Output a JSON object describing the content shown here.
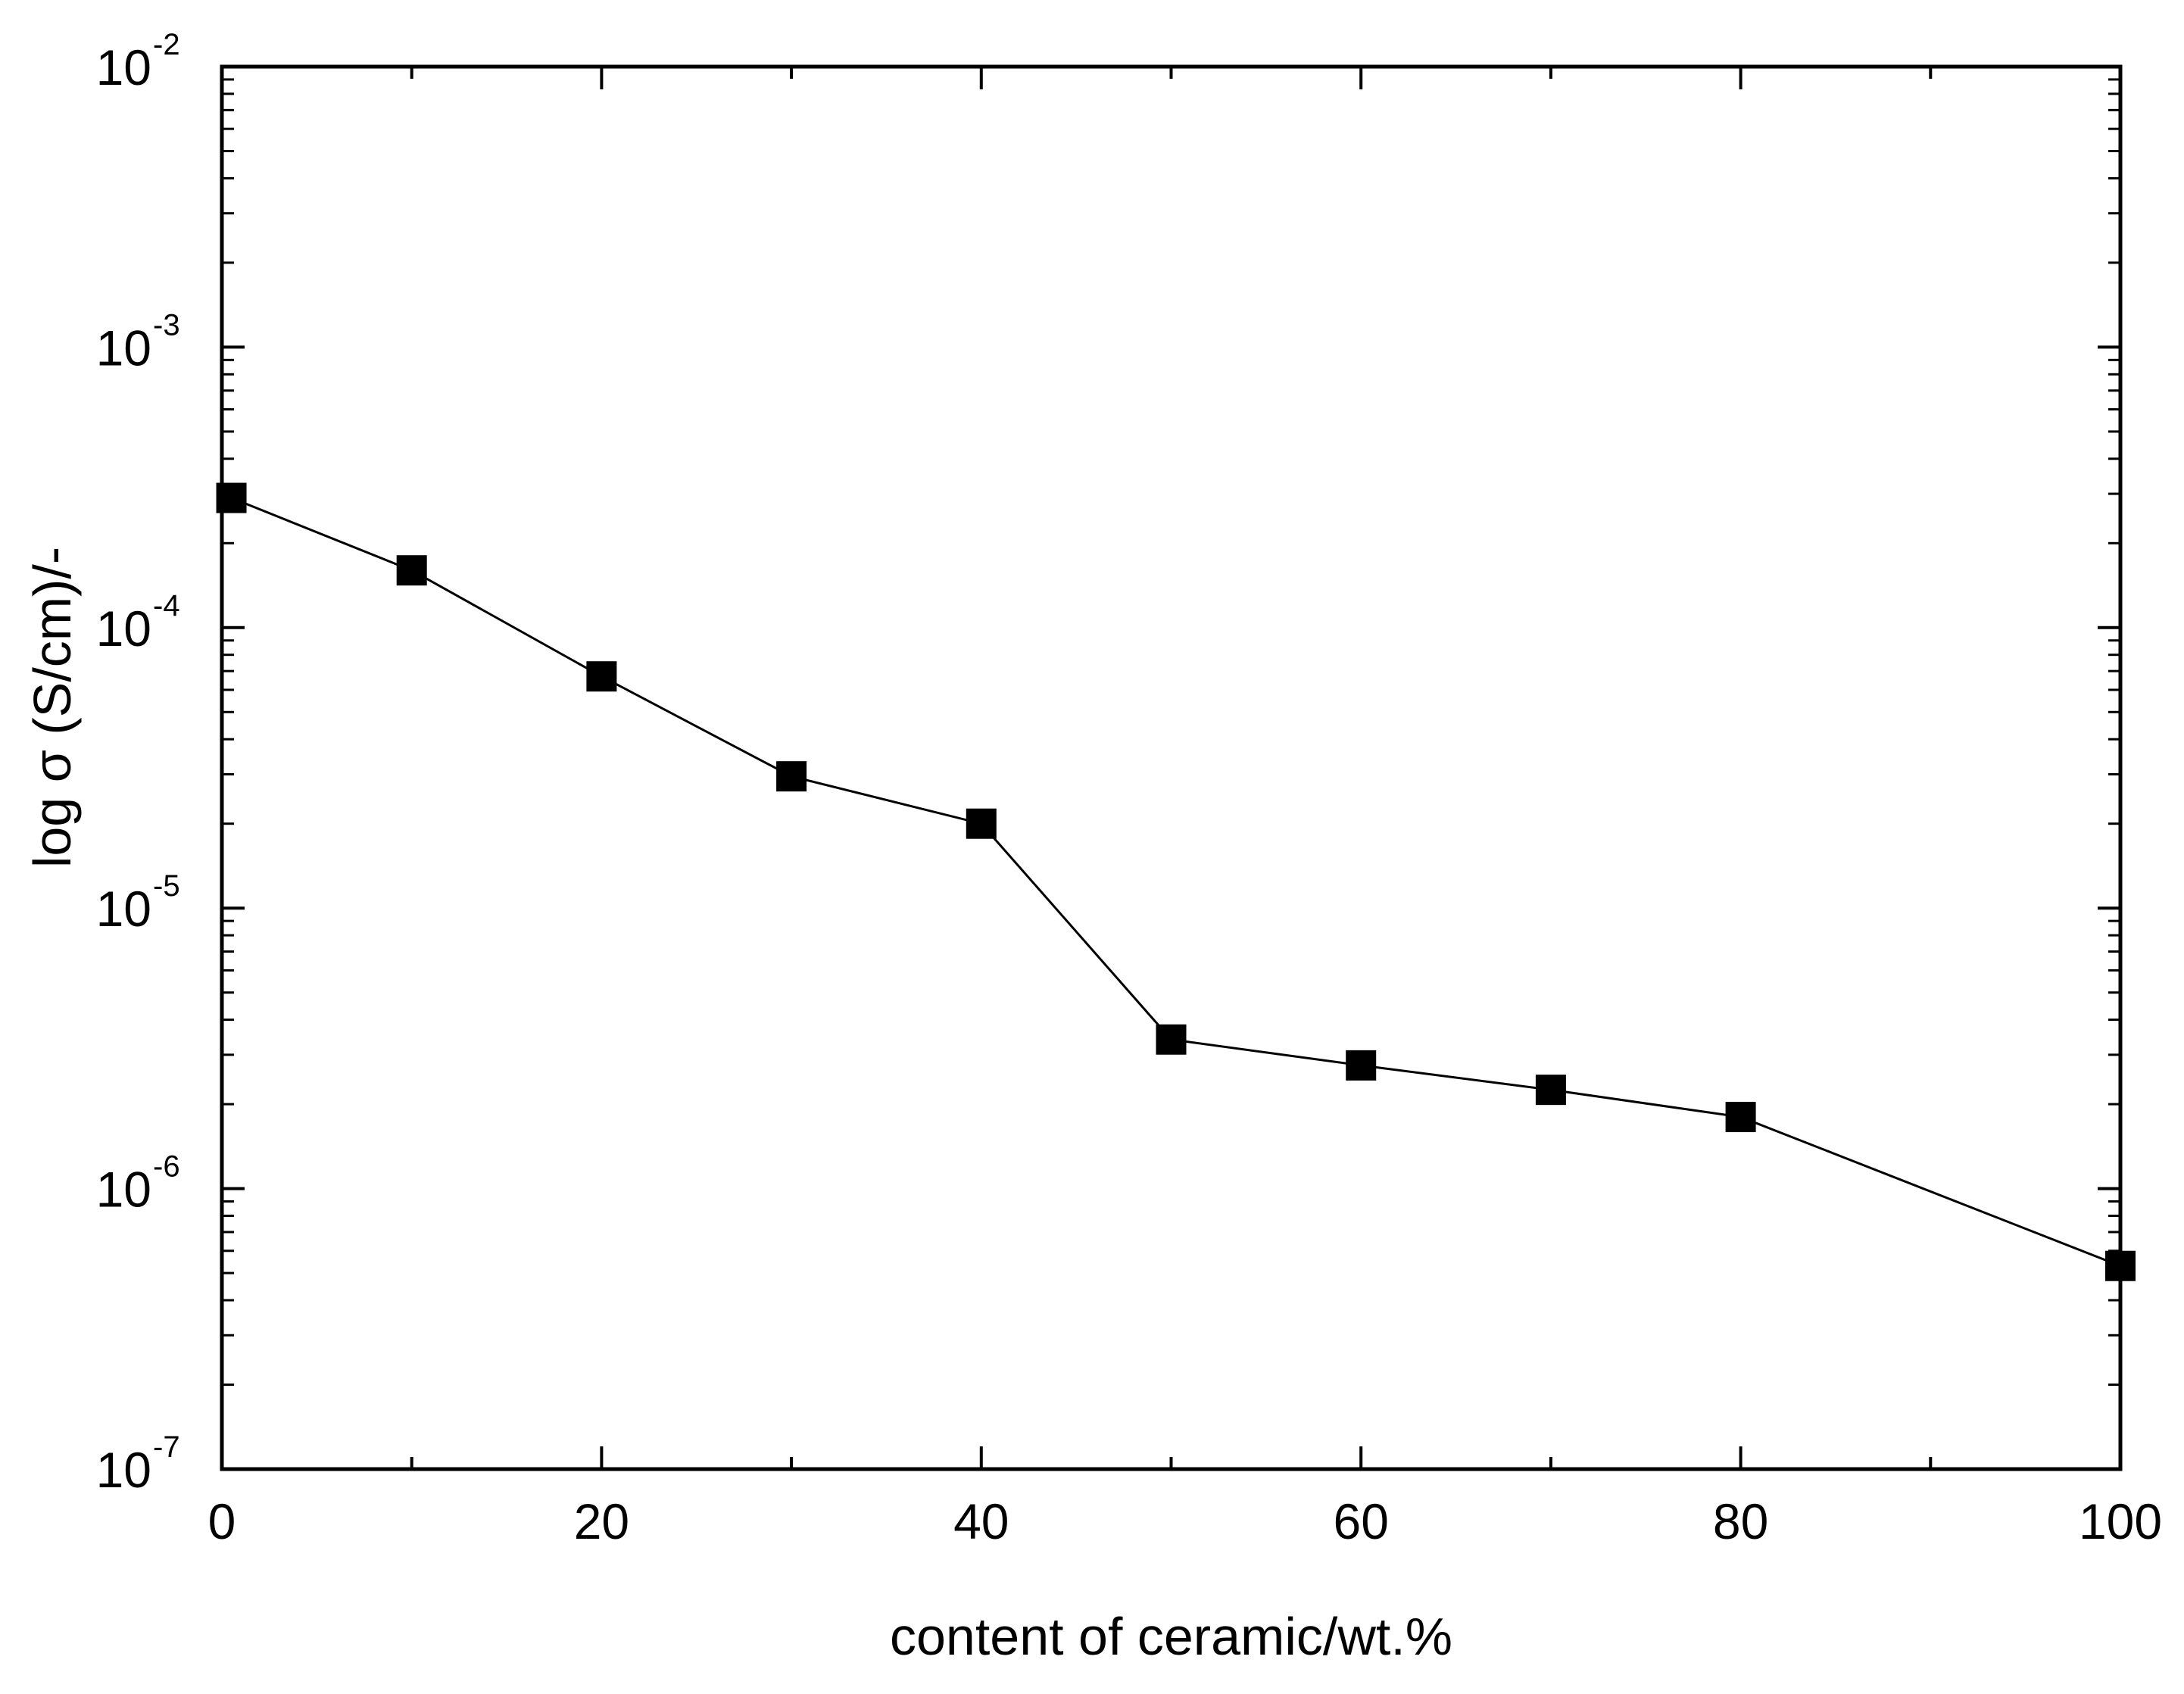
{
  "chart_data": {
    "type": "line",
    "title": "",
    "xlabel": "content of ceramic/wt.%",
    "ylabel": "log σ (S/cm)/-",
    "x_scale": "linear",
    "y_scale": "log",
    "xlim": [
      0,
      100
    ],
    "ylim": [
      1e-07,
      0.01
    ],
    "x_ticks": [
      {
        "value": 0,
        "label": "0"
      },
      {
        "value": 20,
        "label": "20"
      },
      {
        "value": 40,
        "label": "40"
      },
      {
        "value": 60,
        "label": "60"
      },
      {
        "value": 80,
        "label": "80"
      },
      {
        "value": 100,
        "label": "100"
      }
    ],
    "y_ticks": [
      {
        "value": 1e-07,
        "base": "10",
        "exp": "-7"
      },
      {
        "value": 1e-06,
        "base": "10",
        "exp": "-6"
      },
      {
        "value": 1e-05,
        "base": "10",
        "exp": "-5"
      },
      {
        "value": 0.0001,
        "base": "10",
        "exp": "-4"
      },
      {
        "value": 0.001,
        "base": "10",
        "exp": "-3"
      },
      {
        "value": 0.01,
        "base": "10",
        "exp": "-2"
      }
    ],
    "grid": false,
    "legend": "none",
    "series": [
      {
        "marker": "filled-square",
        "color": "#000000",
        "x": [
          0.5,
          10,
          20,
          30,
          40,
          50,
          60,
          70,
          80,
          100
        ],
        "y": [
          0.00029,
          0.00016,
          6.7e-05,
          2.95e-05,
          2e-05,
          3.4e-06,
          2.75e-06,
          2.25e-06,
          1.8e-06,
          5.3e-07
        ]
      }
    ]
  }
}
